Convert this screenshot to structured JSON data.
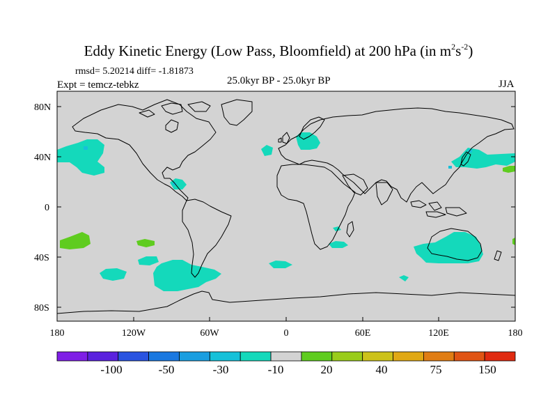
{
  "title": {
    "main": "Eddy Kinetic Energy (Low Pass, Bloomfield) at 200 hPa (in m",
    "sup1": "2",
    "mid": "s",
    "sup2": "-2",
    "end": ")"
  },
  "subtitle": {
    "stats": "rmsd= 5.20214 diff= -1.81873",
    "expt": "Expt = temcz-tebkz",
    "center": "25.0kyr BP - 25.0kyr BP",
    "season": "JJA"
  },
  "map": {
    "background_color": "#d3d3d3",
    "lat_labels": [
      "80N",
      "40N",
      "0",
      "40S",
      "80S"
    ],
    "lon_labels": [
      "180",
      "120W",
      "60W",
      "0",
      "60E",
      "120E",
      "180"
    ],
    "anomaly_regions": [
      {
        "location": "North Pacific (central)",
        "level": "-10",
        "color": "#14d9bb"
      },
      {
        "location": "North Pacific (east of Japan)",
        "level": "-10",
        "color": "#14d9bb"
      },
      {
        "location": "North Atlantic / Europe",
        "level": "-10",
        "color": "#14d9bb"
      },
      {
        "location": "Central America",
        "level": "-10",
        "color": "#14d9bb"
      },
      {
        "location": "Southern Ocean / South Pacific (west of South America)",
        "level": "-10",
        "color": "#14d9bb"
      },
      {
        "location": "Australia / Indian Ocean",
        "level": "-10",
        "color": "#14d9bb"
      },
      {
        "location": "South Atlantic",
        "level": "-10",
        "color": "#14d9bb"
      },
      {
        "location": "South Pacific (west)",
        "level": "20",
        "color": "#5fcc1f"
      },
      {
        "location": "North Pacific (far east)",
        "level": "20",
        "color": "#5fcc1f"
      }
    ]
  },
  "colorbar": {
    "colors": [
      "#7f1fe6",
      "#5a22de",
      "#2953e0",
      "#1a78e0",
      "#1a9ee0",
      "#16c1d9",
      "#14d9bb",
      "#d3d3d3",
      "#5fcc1f",
      "#99cc1a",
      "#ccc21a",
      "#e0a814",
      "#e07d14",
      "#e05414",
      "#e02a10"
    ],
    "labels": [
      "-100",
      "-50",
      "-30",
      "-10",
      "20",
      "40",
      "75",
      "150"
    ]
  }
}
